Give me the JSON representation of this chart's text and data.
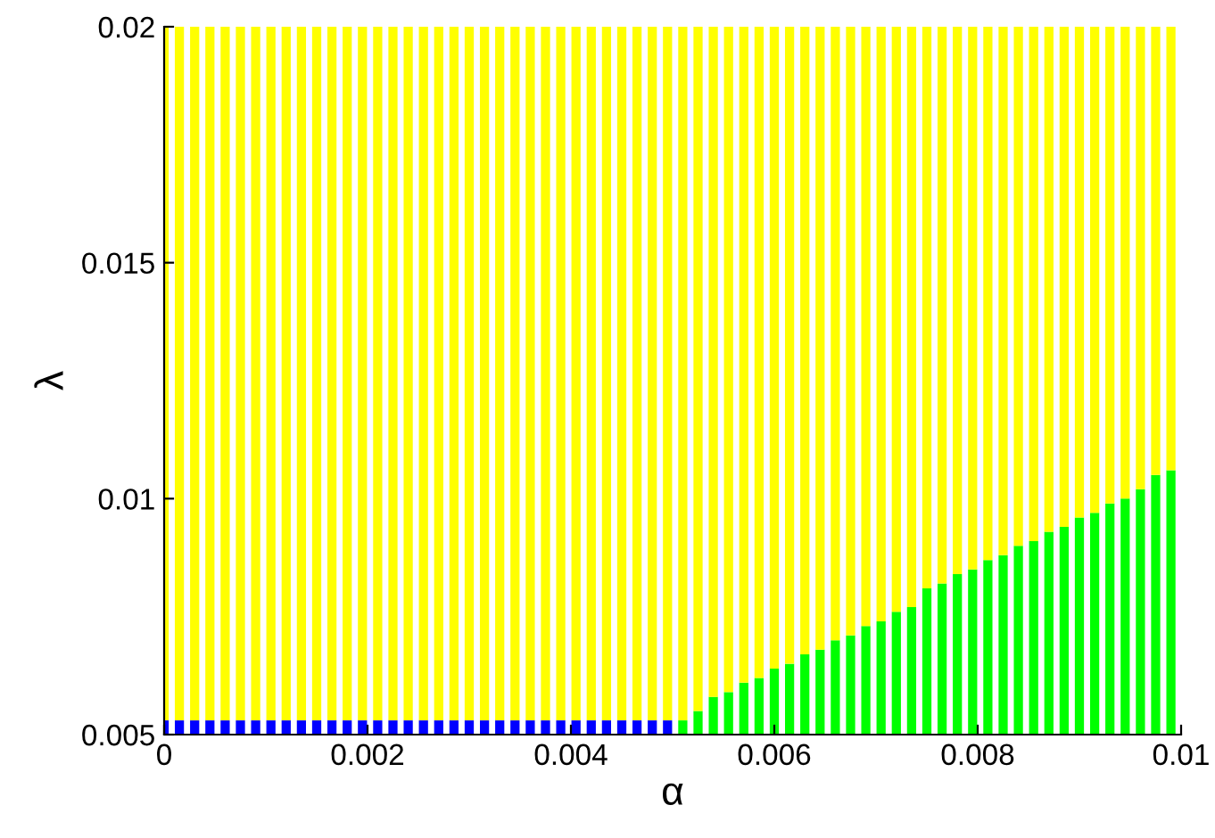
{
  "chart_data": {
    "type": "bar",
    "xlabel": "α",
    "ylabel": "λ",
    "x": [
      0,
      0.00015,
      0.0003,
      0.00045,
      0.0006,
      0.00075,
      0.0009,
      0.00105,
      0.0012,
      0.00135,
      0.0015,
      0.00165,
      0.0018,
      0.00195,
      0.0021,
      0.00225,
      0.0024,
      0.00255,
      0.0027,
      0.00285,
      0.003,
      0.00315,
      0.0033,
      0.00345,
      0.0036,
      0.00375,
      0.0039,
      0.00405,
      0.0042,
      0.00435,
      0.0045,
      0.00465,
      0.0048,
      0.00495,
      0.0051,
      0.00525,
      0.0054,
      0.00555,
      0.0057,
      0.00585,
      0.006,
      0.00615,
      0.0063,
      0.00645,
      0.0066,
      0.00675,
      0.0069,
      0.00705,
      0.0072,
      0.00735,
      0.0075,
      0.00765,
      0.0078,
      0.00795,
      0.0081,
      0.00825,
      0.0084,
      0.00855,
      0.0087,
      0.00885,
      0.009,
      0.00915,
      0.0093,
      0.00945,
      0.0096,
      0.00975,
      0.0099
    ],
    "series": [
      {
        "color": "#0000ff",
        "base": [
          0.005,
          0.005,
          0.005,
          0.005,
          0.005,
          0.005,
          0.005,
          0.005,
          0.005,
          0.005,
          0.005,
          0.005,
          0.005,
          0.005,
          0.005,
          0.005,
          0.005,
          0.005,
          0.005,
          0.005,
          0.005,
          0.005,
          0.005,
          0.005,
          0.005,
          0.005,
          0.005,
          0.005,
          0.005,
          0.005,
          0.005,
          0.005,
          0.005,
          0.005,
          null,
          null,
          null,
          null,
          null,
          null,
          null,
          null,
          null,
          null,
          null,
          null,
          null,
          null,
          null,
          null,
          null,
          null,
          null,
          null,
          null,
          null,
          null,
          null,
          null,
          null,
          null,
          null,
          null,
          null,
          null,
          null,
          null
        ],
        "values": [
          0.0003,
          0.0003,
          0.0003,
          0.0003,
          0.0003,
          0.0003,
          0.0003,
          0.0003,
          0.0003,
          0.0003,
          0.0003,
          0.0003,
          0.0003,
          0.0003,
          0.0003,
          0.0003,
          0.0003,
          0.0003,
          0.0003,
          0.0003,
          0.0003,
          0.0003,
          0.0003,
          0.0003,
          0.0003,
          0.0003,
          0.0003,
          0.0003,
          0.0003,
          0.0003,
          0.0003,
          0.0003,
          0.0003,
          0.0003,
          null,
          null,
          null,
          null,
          null,
          null,
          null,
          null,
          null,
          null,
          null,
          null,
          null,
          null,
          null,
          null,
          null,
          null,
          null,
          null,
          null,
          null,
          null,
          null,
          null,
          null,
          null,
          null,
          null,
          null,
          null,
          null,
          null
        ]
      },
      {
        "color": "#00ff00",
        "base": [
          null,
          null,
          null,
          null,
          null,
          null,
          null,
          null,
          null,
          null,
          null,
          null,
          null,
          null,
          null,
          null,
          null,
          null,
          null,
          null,
          null,
          null,
          null,
          null,
          null,
          null,
          null,
          null,
          null,
          null,
          null,
          null,
          null,
          null,
          0.005,
          0.005,
          0.005,
          0.005,
          0.005,
          0.005,
          0.005,
          0.005,
          0.005,
          0.005,
          0.005,
          0.005,
          0.005,
          0.005,
          0.005,
          0.005,
          0.005,
          0.005,
          0.005,
          0.005,
          0.005,
          0.005,
          0.005,
          0.005,
          0.005,
          0.005,
          0.005,
          0.005,
          0.005,
          0.005,
          0.005,
          0.005,
          0.005
        ],
        "values": [
          null,
          null,
          null,
          null,
          null,
          null,
          null,
          null,
          null,
          null,
          null,
          null,
          null,
          null,
          null,
          null,
          null,
          null,
          null,
          null,
          null,
          null,
          null,
          null,
          null,
          null,
          null,
          null,
          null,
          null,
          null,
          null,
          null,
          null,
          0.0003,
          0.0005,
          0.0008,
          0.0009,
          0.0011,
          0.0012,
          0.0014,
          0.0015,
          0.0017,
          0.0018,
          0.002,
          0.0021,
          0.0023,
          0.0024,
          0.0026,
          0.0027,
          0.0031,
          0.0032,
          0.0034,
          0.0035,
          0.0037,
          0.0038,
          0.004,
          0.0041,
          0.0043,
          0.0044,
          0.0046,
          0.0047,
          0.0049,
          0.005,
          0.0052,
          0.0055,
          0.0056
        ]
      },
      {
        "color": "#ffff00",
        "base": [
          0.0053,
          0.0053,
          0.0053,
          0.0053,
          0.0053,
          0.0053,
          0.0053,
          0.0053,
          0.0053,
          0.0053,
          0.0053,
          0.0053,
          0.0053,
          0.0053,
          0.0053,
          0.0053,
          0.0053,
          0.0053,
          0.0053,
          0.0053,
          0.0053,
          0.0053,
          0.0053,
          0.0053,
          0.0053,
          0.0053,
          0.0053,
          0.0053,
          0.0053,
          0.0053,
          0.0053,
          0.0053,
          0.0053,
          0.0053,
          0.0053,
          0.0055,
          0.0058,
          0.0059,
          0.0061,
          0.0062,
          0.0064,
          0.0065,
          0.0067,
          0.0068,
          0.007,
          0.0071,
          0.0073,
          0.0074,
          0.0076,
          0.0077,
          0.0081,
          0.0082,
          0.0084,
          0.0085,
          0.0087,
          0.0088,
          0.009,
          0.0091,
          0.0093,
          0.0094,
          0.0096,
          0.0097,
          0.0099,
          0.01,
          0.0102,
          0.0105,
          0.0106
        ],
        "values": [
          0.0147,
          0.0147,
          0.0147,
          0.0147,
          0.0147,
          0.0147,
          0.0147,
          0.0147,
          0.0147,
          0.0147,
          0.0147,
          0.0147,
          0.0147,
          0.0147,
          0.0147,
          0.0147,
          0.0147,
          0.0147,
          0.0147,
          0.0147,
          0.0147,
          0.0147,
          0.0147,
          0.0147,
          0.0147,
          0.0147,
          0.0147,
          0.0147,
          0.0147,
          0.0147,
          0.0147,
          0.0147,
          0.0147,
          0.0147,
          0.0147,
          0.0145,
          0.0142,
          0.0141,
          0.0139,
          0.0138,
          0.0136,
          0.0135,
          0.0133,
          0.0132,
          0.013,
          0.0129,
          0.0127,
          0.0126,
          0.0124,
          0.0123,
          0.0119,
          0.0118,
          0.0116,
          0.0115,
          0.0113,
          0.0112,
          0.011,
          0.0109,
          0.0107,
          0.0106,
          0.0104,
          0.0103,
          0.0101,
          0.01,
          0.0098,
          0.0095,
          0.0094
        ]
      }
    ],
    "xlim": [
      0,
      0.01
    ],
    "xticks": [
      0,
      0.002,
      0.004,
      0.006,
      0.008,
      0.01
    ],
    "ylim": [
      0.005,
      0.02
    ],
    "yticks": [
      0.005,
      0.01,
      0.015,
      0.02
    ],
    "grid": false
  }
}
